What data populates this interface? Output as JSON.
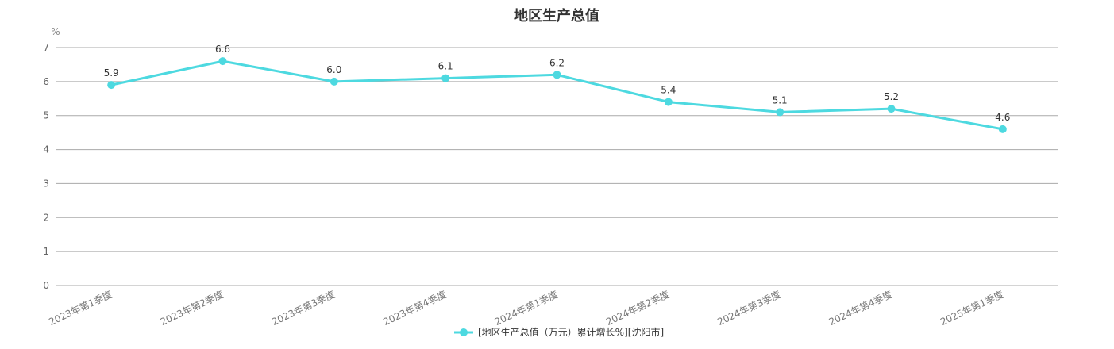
{
  "chart_data": {
    "type": "line",
    "title": "地区生产总值",
    "unit": "%",
    "categories": [
      "2023年第1季度",
      "2023年第2季度",
      "2023年第3季度",
      "2023年第4季度",
      "2024年第1季度",
      "2024年第2季度",
      "2024年第3季度",
      "2024年第4季度",
      "2025年第1季度"
    ],
    "series": [
      {
        "name": "[地区生产总值（万元）累计增长%][沈阳市]",
        "values": [
          5.9,
          6.6,
          6.0,
          6.1,
          6.2,
          5.4,
          5.1,
          5.2,
          4.6
        ],
        "labels": [
          "5.9",
          "6.6",
          "6.0",
          "6.1",
          "6.2",
          "5.4",
          "5.1",
          "5.2",
          "4.6"
        ],
        "color": "#4dd9e0"
      }
    ],
    "yticks": [
      "0",
      "1",
      "2",
      "3",
      "4",
      "5",
      "6",
      "7"
    ],
    "ylim": [
      0,
      7
    ],
    "grid": true,
    "legend_position": "bottom-center"
  }
}
